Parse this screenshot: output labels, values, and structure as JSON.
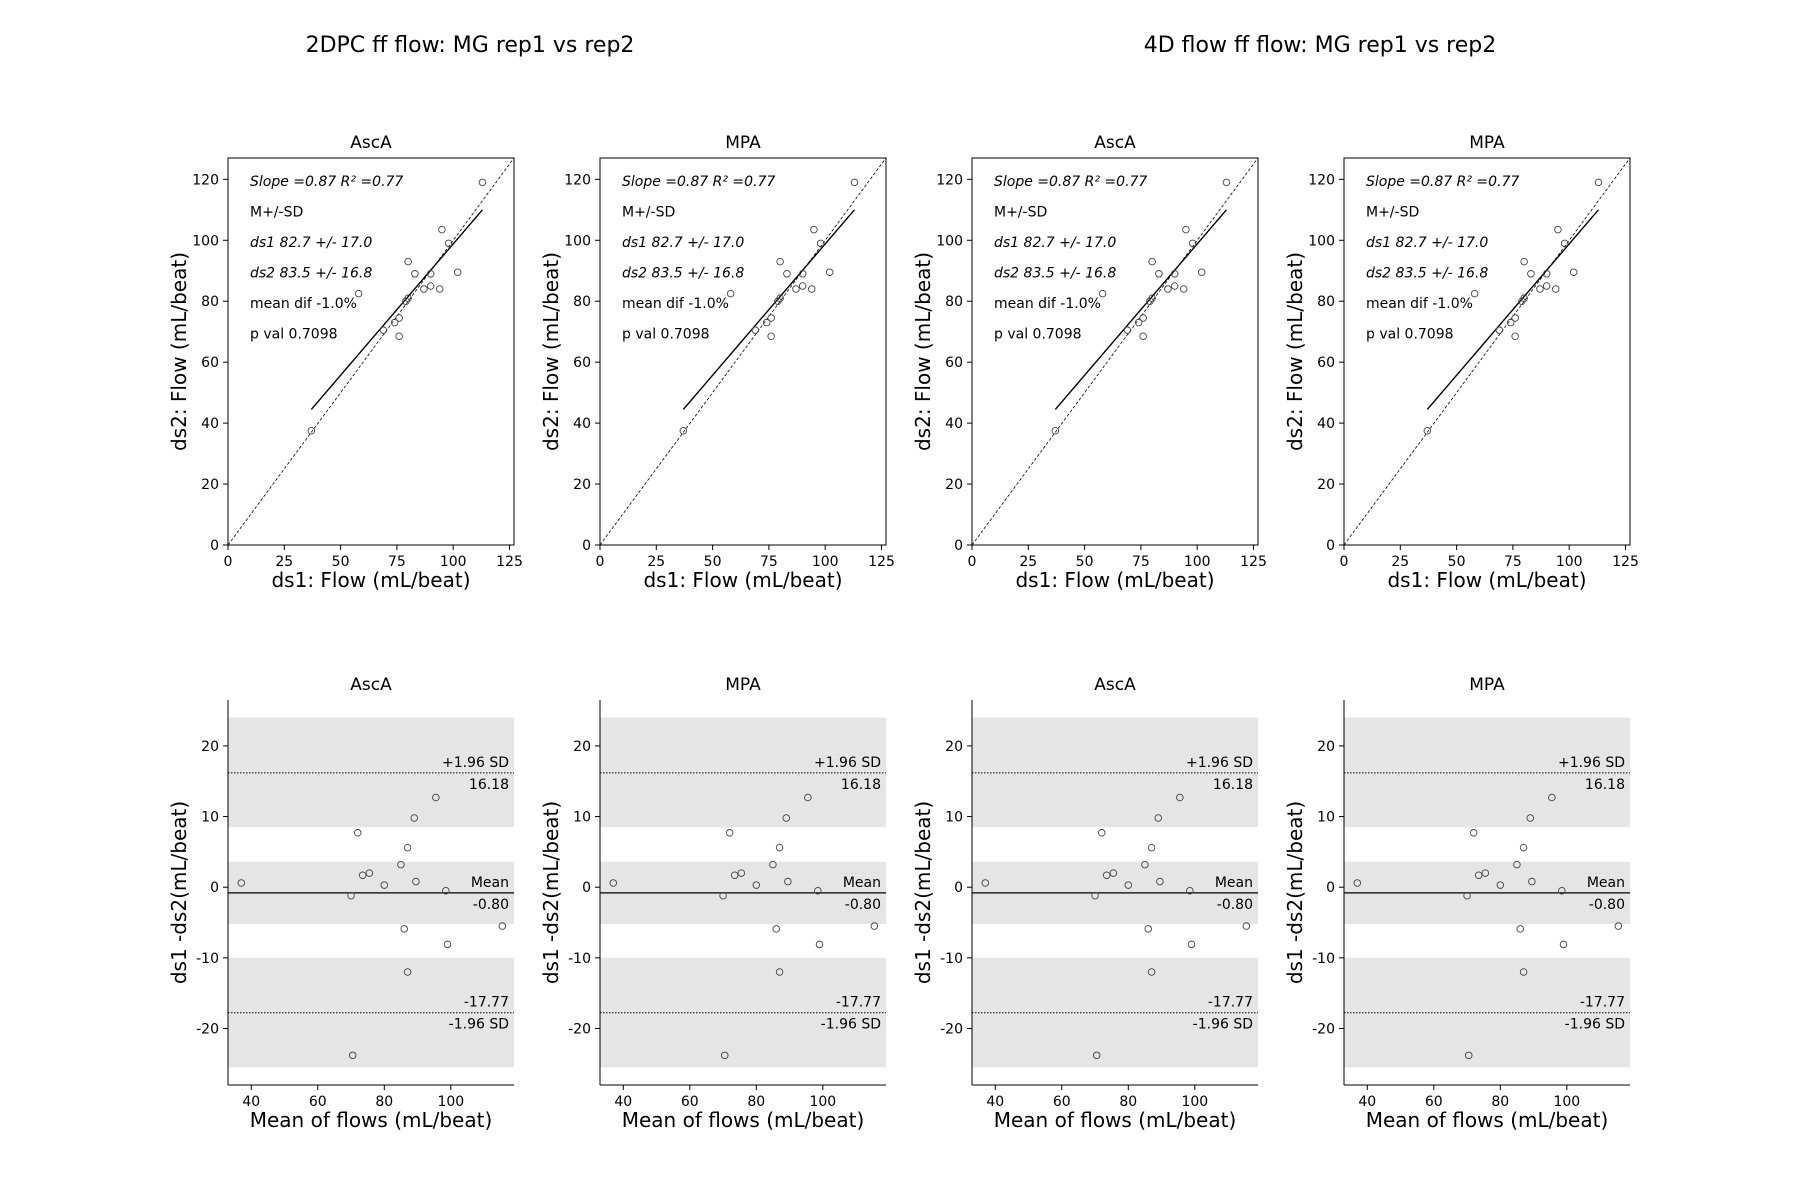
{
  "suptitles": [
    "2DPC ff flow: MG rep1 vs rep2",
    "4D flow ff flow: MG rep1 vs rep2"
  ],
  "chart_data": [
    {
      "type": "scatter",
      "group": "2DPC ff flow: MG rep1 vs rep2",
      "title": "AscA",
      "xlabel": "ds1: Flow (mL/beat)",
      "ylabel": "ds2: Flow (mL/beat)",
      "xlim": [
        0,
        127
      ],
      "ylim": [
        0,
        127
      ],
      "xticks": [
        0,
        25,
        50,
        75,
        100,
        125
      ],
      "yticks": [
        0,
        20,
        40,
        60,
        80,
        100,
        120
      ],
      "points": [
        [
          37,
          37.5
        ],
        [
          58,
          82.5
        ],
        [
          69,
          70.5
        ],
        [
          74,
          73
        ],
        [
          76,
          74.5
        ],
        [
          76,
          68.5
        ],
        [
          79,
          80
        ],
        [
          80,
          81
        ],
        [
          80,
          93
        ],
        [
          83,
          89
        ],
        [
          87,
          84
        ],
        [
          90,
          89
        ],
        [
          90,
          85
        ],
        [
          94,
          84
        ],
        [
          95,
          103.5
        ],
        [
          98,
          99
        ],
        [
          102,
          89.5
        ],
        [
          113,
          119
        ]
      ],
      "fit_line": {
        "x": [
          37,
          113
        ],
        "y": [
          44.5,
          110
        ]
      },
      "identity_line": true,
      "annotations": [
        "Slope =0.87  R² =0.77",
        "M+/-SD",
        "ds1 82.7  +/- 17.0",
        "ds2 83.5  +/- 16.8",
        "mean dif -1.0%",
        "p val 0.7098"
      ]
    },
    {
      "type": "scatter",
      "group": "2DPC ff flow: MG rep1 vs rep2",
      "title": "MPA",
      "xlabel": "ds1: Flow (mL/beat)",
      "ylabel": "ds2: Flow (mL/beat)",
      "xlim": [
        0,
        127
      ],
      "ylim": [
        0,
        127
      ],
      "xticks": [
        0,
        25,
        50,
        75,
        100,
        125
      ],
      "yticks": [
        0,
        20,
        40,
        60,
        80,
        100,
        120
      ],
      "points": [
        [
          37,
          37.5
        ],
        [
          58,
          82.5
        ],
        [
          69,
          70.5
        ],
        [
          74,
          73
        ],
        [
          76,
          74.5
        ],
        [
          76,
          68.5
        ],
        [
          79,
          80
        ],
        [
          80,
          81
        ],
        [
          80,
          93
        ],
        [
          83,
          89
        ],
        [
          87,
          84
        ],
        [
          90,
          89
        ],
        [
          90,
          85
        ],
        [
          94,
          84
        ],
        [
          95,
          103.5
        ],
        [
          98,
          99
        ],
        [
          102,
          89.5
        ],
        [
          113,
          119
        ]
      ],
      "fit_line": {
        "x": [
          37,
          113
        ],
        "y": [
          44.5,
          110
        ]
      },
      "identity_line": true,
      "annotations": [
        "Slope =0.87  R² =0.77",
        "M+/-SD",
        "ds1 82.7  +/- 17.0",
        "ds2 83.5  +/- 16.8",
        "mean dif -1.0%",
        "p val 0.7098"
      ]
    },
    {
      "type": "scatter",
      "group": "4D flow ff flow: MG rep1 vs rep2",
      "title": "AscA",
      "xlabel": "ds1: Flow (mL/beat)",
      "ylabel": "ds2: Flow (mL/beat)",
      "xlim": [
        0,
        127
      ],
      "ylim": [
        0,
        127
      ],
      "xticks": [
        0,
        25,
        50,
        75,
        100,
        125
      ],
      "yticks": [
        0,
        20,
        40,
        60,
        80,
        100,
        120
      ],
      "points": [
        [
          37,
          37.5
        ],
        [
          58,
          82.5
        ],
        [
          69,
          70.5
        ],
        [
          74,
          73
        ],
        [
          76,
          74.5
        ],
        [
          76,
          68.5
        ],
        [
          79,
          80
        ],
        [
          80,
          81
        ],
        [
          80,
          93
        ],
        [
          83,
          89
        ],
        [
          87,
          84
        ],
        [
          90,
          89
        ],
        [
          90,
          85
        ],
        [
          94,
          84
        ],
        [
          95,
          103.5
        ],
        [
          98,
          99
        ],
        [
          102,
          89.5
        ],
        [
          113,
          119
        ]
      ],
      "fit_line": {
        "x": [
          37,
          113
        ],
        "y": [
          44.5,
          110
        ]
      },
      "identity_line": true,
      "annotations": [
        "Slope =0.87  R² =0.77",
        "M+/-SD",
        "ds1 82.7  +/- 17.0",
        "ds2 83.5  +/- 16.8",
        "mean dif -1.0%",
        "p val 0.7098"
      ]
    },
    {
      "type": "scatter",
      "group": "4D flow ff flow: MG rep1 vs rep2",
      "title": "MPA",
      "xlabel": "ds1: Flow (mL/beat)",
      "ylabel": "ds2: Flow (mL/beat)",
      "xlim": [
        0,
        127
      ],
      "ylim": [
        0,
        127
      ],
      "xticks": [
        0,
        25,
        50,
        75,
        100,
        125
      ],
      "yticks": [
        0,
        20,
        40,
        60,
        80,
        100,
        120
      ],
      "points": [
        [
          37,
          37.5
        ],
        [
          58,
          82.5
        ],
        [
          69,
          70.5
        ],
        [
          74,
          73
        ],
        [
          76,
          74.5
        ],
        [
          76,
          68.5
        ],
        [
          79,
          80
        ],
        [
          80,
          81
        ],
        [
          80,
          93
        ],
        [
          83,
          89
        ],
        [
          87,
          84
        ],
        [
          90,
          89
        ],
        [
          90,
          85
        ],
        [
          94,
          84
        ],
        [
          95,
          103.5
        ],
        [
          98,
          99
        ],
        [
          102,
          89.5
        ],
        [
          113,
          119
        ]
      ],
      "fit_line": {
        "x": [
          37,
          113
        ],
        "y": [
          44.5,
          110
        ]
      },
      "identity_line": true,
      "annotations": [
        "Slope =0.87  R² =0.77",
        "M+/-SD",
        "ds1 82.7  +/- 17.0",
        "ds2 83.5  +/- 16.8",
        "mean dif -1.0%",
        "p val 0.7098"
      ]
    },
    {
      "type": "scatter",
      "subtype": "bland-altman",
      "group": "2DPC ff flow: MG rep1 vs rep2",
      "title": "AscA",
      "xlabel": "Mean of flows (mL/beat)",
      "ylabel": "ds1 -ds2(mL/beat)",
      "xlim": [
        33,
        119
      ],
      "ylim": [
        -28,
        26.5
      ],
      "xticks": [
        40,
        60,
        80,
        100
      ],
      "yticks": [
        -20,
        -10,
        0,
        10,
        20
      ],
      "points": [
        [
          37,
          0.6
        ],
        [
          70,
          -1.2
        ],
        [
          72,
          7.7
        ],
        [
          73.5,
          1.7
        ],
        [
          75.5,
          2
        ],
        [
          80,
          0.3
        ],
        [
          85,
          3.2
        ],
        [
          86,
          -5.9
        ],
        [
          87,
          5.6
        ],
        [
          87,
          -12
        ],
        [
          89,
          9.8
        ],
        [
          89.5,
          0.8
        ],
        [
          95.5,
          12.7
        ],
        [
          98.5,
          -0.5
        ],
        [
          99,
          -8.1
        ],
        [
          115.5,
          -5.5
        ],
        [
          70.5,
          -23.8
        ]
      ],
      "mean_diff": -0.8,
      "upper_loa": 16.18,
      "lower_loa": -17.77,
      "bands": [
        [
          8.5,
          24
        ],
        [
          -5.2,
          3.6
        ],
        [
          -25.5,
          -10
        ]
      ],
      "labels": {
        "upper_title": "+1.96 SD",
        "upper_value": "16.18",
        "mean_title": "Mean",
        "mean_value": "-0.80",
        "lower_value": "-17.77",
        "lower_title": "-1.96 SD"
      }
    },
    {
      "type": "scatter",
      "subtype": "bland-altman",
      "group": "2DPC ff flow: MG rep1 vs rep2",
      "title": "MPA",
      "xlabel": "Mean of flows (mL/beat)",
      "ylabel": "ds1 -ds2(mL/beat)",
      "xlim": [
        33,
        119
      ],
      "ylim": [
        -28,
        26.5
      ],
      "xticks": [
        40,
        60,
        80,
        100
      ],
      "yticks": [
        -20,
        -10,
        0,
        10,
        20
      ],
      "points": [
        [
          37,
          0.6
        ],
        [
          70,
          -1.2
        ],
        [
          72,
          7.7
        ],
        [
          73.5,
          1.7
        ],
        [
          75.5,
          2
        ],
        [
          80,
          0.3
        ],
        [
          85,
          3.2
        ],
        [
          86,
          -5.9
        ],
        [
          87,
          5.6
        ],
        [
          87,
          -12
        ],
        [
          89,
          9.8
        ],
        [
          89.5,
          0.8
        ],
        [
          95.5,
          12.7
        ],
        [
          98.5,
          -0.5
        ],
        [
          99,
          -8.1
        ],
        [
          115.5,
          -5.5
        ],
        [
          70.5,
          -23.8
        ]
      ],
      "mean_diff": -0.8,
      "upper_loa": 16.18,
      "lower_loa": -17.77,
      "bands": [
        [
          8.5,
          24
        ],
        [
          -5.2,
          3.6
        ],
        [
          -25.5,
          -10
        ]
      ],
      "labels": {
        "upper_title": "+1.96 SD",
        "upper_value": "16.18",
        "mean_title": "Mean",
        "mean_value": "-0.80",
        "lower_value": "-17.77",
        "lower_title": "-1.96 SD"
      }
    },
    {
      "type": "scatter",
      "subtype": "bland-altman",
      "group": "4D flow ff flow: MG rep1 vs rep2",
      "title": "AscA",
      "xlabel": "Mean of flows (mL/beat)",
      "ylabel": "ds1 -ds2(mL/beat)",
      "xlim": [
        33,
        119
      ],
      "ylim": [
        -28,
        26.5
      ],
      "xticks": [
        40,
        60,
        80,
        100
      ],
      "yticks": [
        -20,
        -10,
        0,
        10,
        20
      ],
      "points": [
        [
          37,
          0.6
        ],
        [
          70,
          -1.2
        ],
        [
          72,
          7.7
        ],
        [
          73.5,
          1.7
        ],
        [
          75.5,
          2
        ],
        [
          80,
          0.3
        ],
        [
          85,
          3.2
        ],
        [
          86,
          -5.9
        ],
        [
          87,
          5.6
        ],
        [
          87,
          -12
        ],
        [
          89,
          9.8
        ],
        [
          89.5,
          0.8
        ],
        [
          95.5,
          12.7
        ],
        [
          98.5,
          -0.5
        ],
        [
          99,
          -8.1
        ],
        [
          115.5,
          -5.5
        ],
        [
          70.5,
          -23.8
        ]
      ],
      "mean_diff": -0.8,
      "upper_loa": 16.18,
      "lower_loa": -17.77,
      "bands": [
        [
          8.5,
          24
        ],
        [
          -5.2,
          3.6
        ],
        [
          -25.5,
          -10
        ]
      ],
      "labels": {
        "upper_title": "+1.96 SD",
        "upper_value": "16.18",
        "mean_title": "Mean",
        "mean_value": "-0.80",
        "lower_value": "-17.77",
        "lower_title": "-1.96 SD"
      }
    },
    {
      "type": "scatter",
      "subtype": "bland-altman",
      "group": "4D flow ff flow: MG rep1 vs rep2",
      "title": "MPA",
      "xlabel": "Mean of flows (mL/beat)",
      "ylabel": "ds1 -ds2(mL/beat)",
      "xlim": [
        33,
        119
      ],
      "ylim": [
        -28,
        26.5
      ],
      "xticks": [
        40,
        60,
        80,
        100
      ],
      "yticks": [
        -20,
        -10,
        0,
        10,
        20
      ],
      "points": [
        [
          37,
          0.6
        ],
        [
          70,
          -1.2
        ],
        [
          72,
          7.7
        ],
        [
          73.5,
          1.7
        ],
        [
          75.5,
          2
        ],
        [
          80,
          0.3
        ],
        [
          85,
          3.2
        ],
        [
          86,
          -5.9
        ],
        [
          87,
          5.6
        ],
        [
          87,
          -12
        ],
        [
          89,
          9.8
        ],
        [
          89.5,
          0.8
        ],
        [
          95.5,
          12.7
        ],
        [
          98.5,
          -0.5
        ],
        [
          99,
          -8.1
        ],
        [
          115.5,
          -5.5
        ],
        [
          70.5,
          -23.8
        ]
      ],
      "mean_diff": -0.8,
      "upper_loa": 16.18,
      "lower_loa": -17.77,
      "bands": [
        [
          8.5,
          24
        ],
        [
          -5.2,
          3.6
        ],
        [
          -25.5,
          -10
        ]
      ],
      "labels": {
        "upper_title": "+1.96 SD",
        "upper_value": "16.18",
        "mean_title": "Mean",
        "mean_value": "-0.80",
        "lower_value": "-17.77",
        "lower_title": "-1.96 SD"
      }
    }
  ]
}
